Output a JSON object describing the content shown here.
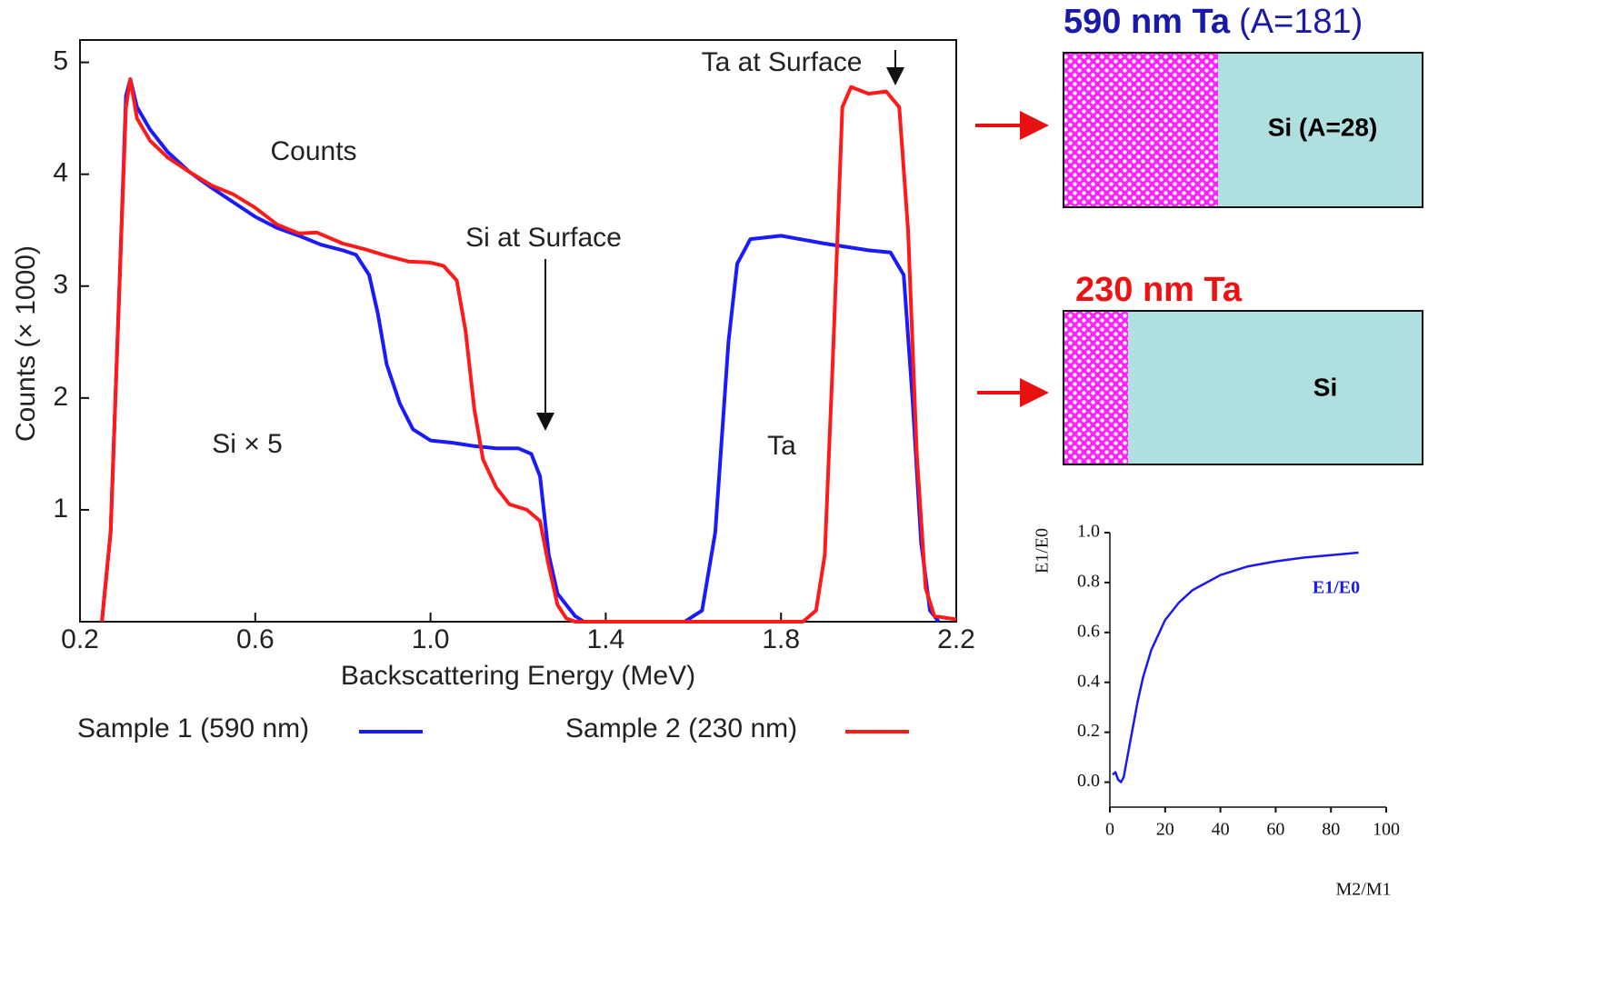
{
  "chart_data": [
    {
      "type": "line",
      "x_label": "Backscattering Energy (MeV)",
      "y_label": "Counts (× 1000)",
      "annotations": [
        "Counts",
        "Si at Surface",
        "Ta at Surface",
        "Si × 5",
        "Ta"
      ],
      "xlim": [
        0.2,
        2.2
      ],
      "xticks": [
        0.2,
        0.6,
        {
          "value": 1,
          "label": "1.0"
        },
        1.4,
        1.8,
        2.2
      ],
      "ylim": [
        0,
        5.2
      ],
      "yticks": [
        1,
        2,
        3,
        4,
        5
      ],
      "series": [
        {
          "name": "Sample 1 (590 nm)",
          "color": "#1a1aff",
          "x": [
            0.25,
            0.27,
            0.29,
            0.305,
            0.315,
            0.33,
            0.36,
            0.4,
            0.45,
            0.5,
            0.55,
            0.6,
            0.65,
            0.7,
            0.75,
            0.8,
            0.83,
            0.86,
            0.88,
            0.9,
            0.93,
            0.96,
            1.0,
            1.05,
            1.1,
            1.15,
            1.2,
            1.23,
            1.25,
            1.27,
            1.29,
            1.31,
            1.33,
            1.35,
            1.58,
            1.62,
            1.65,
            1.68,
            1.7,
            1.73,
            1.8,
            1.9,
            2.0,
            2.05,
            2.08,
            2.1,
            2.12,
            2.14,
            2.16
          ],
          "values": [
            0,
            0.8,
            3.0,
            4.7,
            4.85,
            4.6,
            4.4,
            4.2,
            4.02,
            3.88,
            3.75,
            3.62,
            3.52,
            3.45,
            3.37,
            3.32,
            3.28,
            3.1,
            2.75,
            2.3,
            1.95,
            1.72,
            1.62,
            1.6,
            1.57,
            1.55,
            1.55,
            1.5,
            1.3,
            0.6,
            0.25,
            0.15,
            0.05,
            0,
            0,
            0.1,
            0.8,
            2.5,
            3.2,
            3.42,
            3.45,
            3.38,
            3.32,
            3.3,
            3.1,
            2.0,
            0.7,
            0.1,
            0
          ]
        },
        {
          "name": "Sample 2 (230 nm)",
          "color": "#ff1a1a",
          "x": [
            0.25,
            0.27,
            0.29,
            0.305,
            0.315,
            0.33,
            0.36,
            0.4,
            0.45,
            0.5,
            0.55,
            0.6,
            0.65,
            0.7,
            0.74,
            0.8,
            0.85,
            0.9,
            0.95,
            1.0,
            1.03,
            1.06,
            1.08,
            1.1,
            1.12,
            1.15,
            1.18,
            1.22,
            1.25,
            1.27,
            1.29,
            1.31,
            1.33,
            1.85,
            1.88,
            1.9,
            1.92,
            1.94,
            1.96,
            2.0,
            2.04,
            2.07,
            2.09,
            2.11,
            2.13,
            2.15,
            2.2
          ],
          "values": [
            0,
            0.8,
            3.0,
            4.6,
            4.85,
            4.5,
            4.3,
            4.15,
            4.02,
            3.9,
            3.82,
            3.7,
            3.55,
            3.47,
            3.48,
            3.38,
            3.33,
            3.27,
            3.22,
            3.21,
            3.18,
            3.05,
            2.6,
            1.9,
            1.45,
            1.2,
            1.05,
            1.0,
            0.9,
            0.5,
            0.15,
            0.03,
            0,
            0,
            0.1,
            0.6,
            2.5,
            4.6,
            4.78,
            4.72,
            4.74,
            4.6,
            3.5,
            1.5,
            0.3,
            0.05,
            0.02
          ]
        }
      ]
    },
    {
      "type": "line",
      "x_label": "M2/M1",
      "y_label": "E1/E0",
      "xlim": [
        0,
        100
      ],
      "xticks": [
        0,
        20,
        40,
        60,
        80,
        100
      ],
      "ylim": [
        -0.1,
        1.0
      ],
      "yticks": [
        {
          "value": 0,
          "label": "0.0"
        },
        0.2,
        0.4,
        0.6,
        0.8,
        {
          "value": 1,
          "label": "1.0"
        }
      ],
      "series": [
        {
          "name": "E1/E0",
          "color": "#1a1aee",
          "x": [
            1,
            2,
            3,
            4,
            5,
            6,
            8,
            10,
            12,
            15,
            20,
            25,
            30,
            40,
            50,
            60,
            70,
            80,
            90
          ],
          "values": [
            0.03,
            0.04,
            0.01,
            0.0,
            0.02,
            0.08,
            0.2,
            0.32,
            0.42,
            0.53,
            0.65,
            0.72,
            0.77,
            0.83,
            0.865,
            0.885,
            0.9,
            0.91,
            0.92
          ]
        }
      ]
    }
  ],
  "samples": [
    {
      "title": "590 nm Ta",
      "subtitle": "(A=181)",
      "substrate": "Si (A=28)"
    },
    {
      "title": "230 nm Ta",
      "substrate": "Si"
    }
  ]
}
